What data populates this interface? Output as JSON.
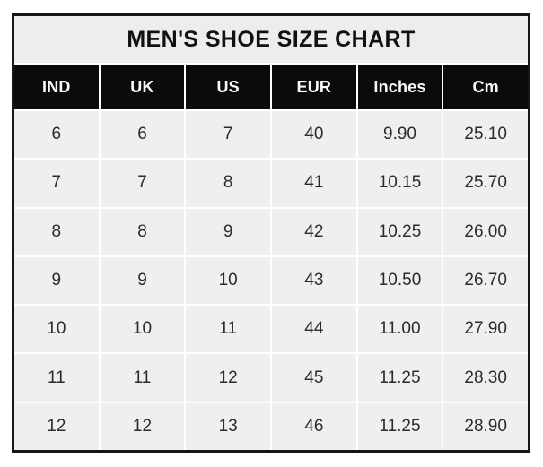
{
  "chart_data": {
    "type": "table",
    "title": "MEN'S SHOE SIZE CHART",
    "columns": [
      "IND",
      "UK",
      "US",
      "EUR",
      "Inches",
      "Cm"
    ],
    "rows": [
      [
        "6",
        "6",
        "7",
        "40",
        "9.90",
        "25.10"
      ],
      [
        "7",
        "7",
        "8",
        "41",
        "10.15",
        "25.70"
      ],
      [
        "8",
        "8",
        "9",
        "42",
        "10.25",
        "26.00"
      ],
      [
        "9",
        "9",
        "10",
        "43",
        "10.50",
        "26.70"
      ],
      [
        "10",
        "10",
        "11",
        "44",
        "11.00",
        "27.90"
      ],
      [
        "11",
        "11",
        "12",
        "45",
        "11.25",
        "28.30"
      ],
      [
        "12",
        "12",
        "13",
        "46",
        "11.25",
        "28.90"
      ]
    ]
  },
  "colors": {
    "border": "#161616",
    "separator": "#ffffff",
    "title_bg": "#eeecec",
    "title_text": "#111111",
    "header_bg": "#0b0b0b",
    "header_text": "#fafafa",
    "cell_bg": "#f0eeee",
    "cell_text": "#2b2b2b"
  }
}
